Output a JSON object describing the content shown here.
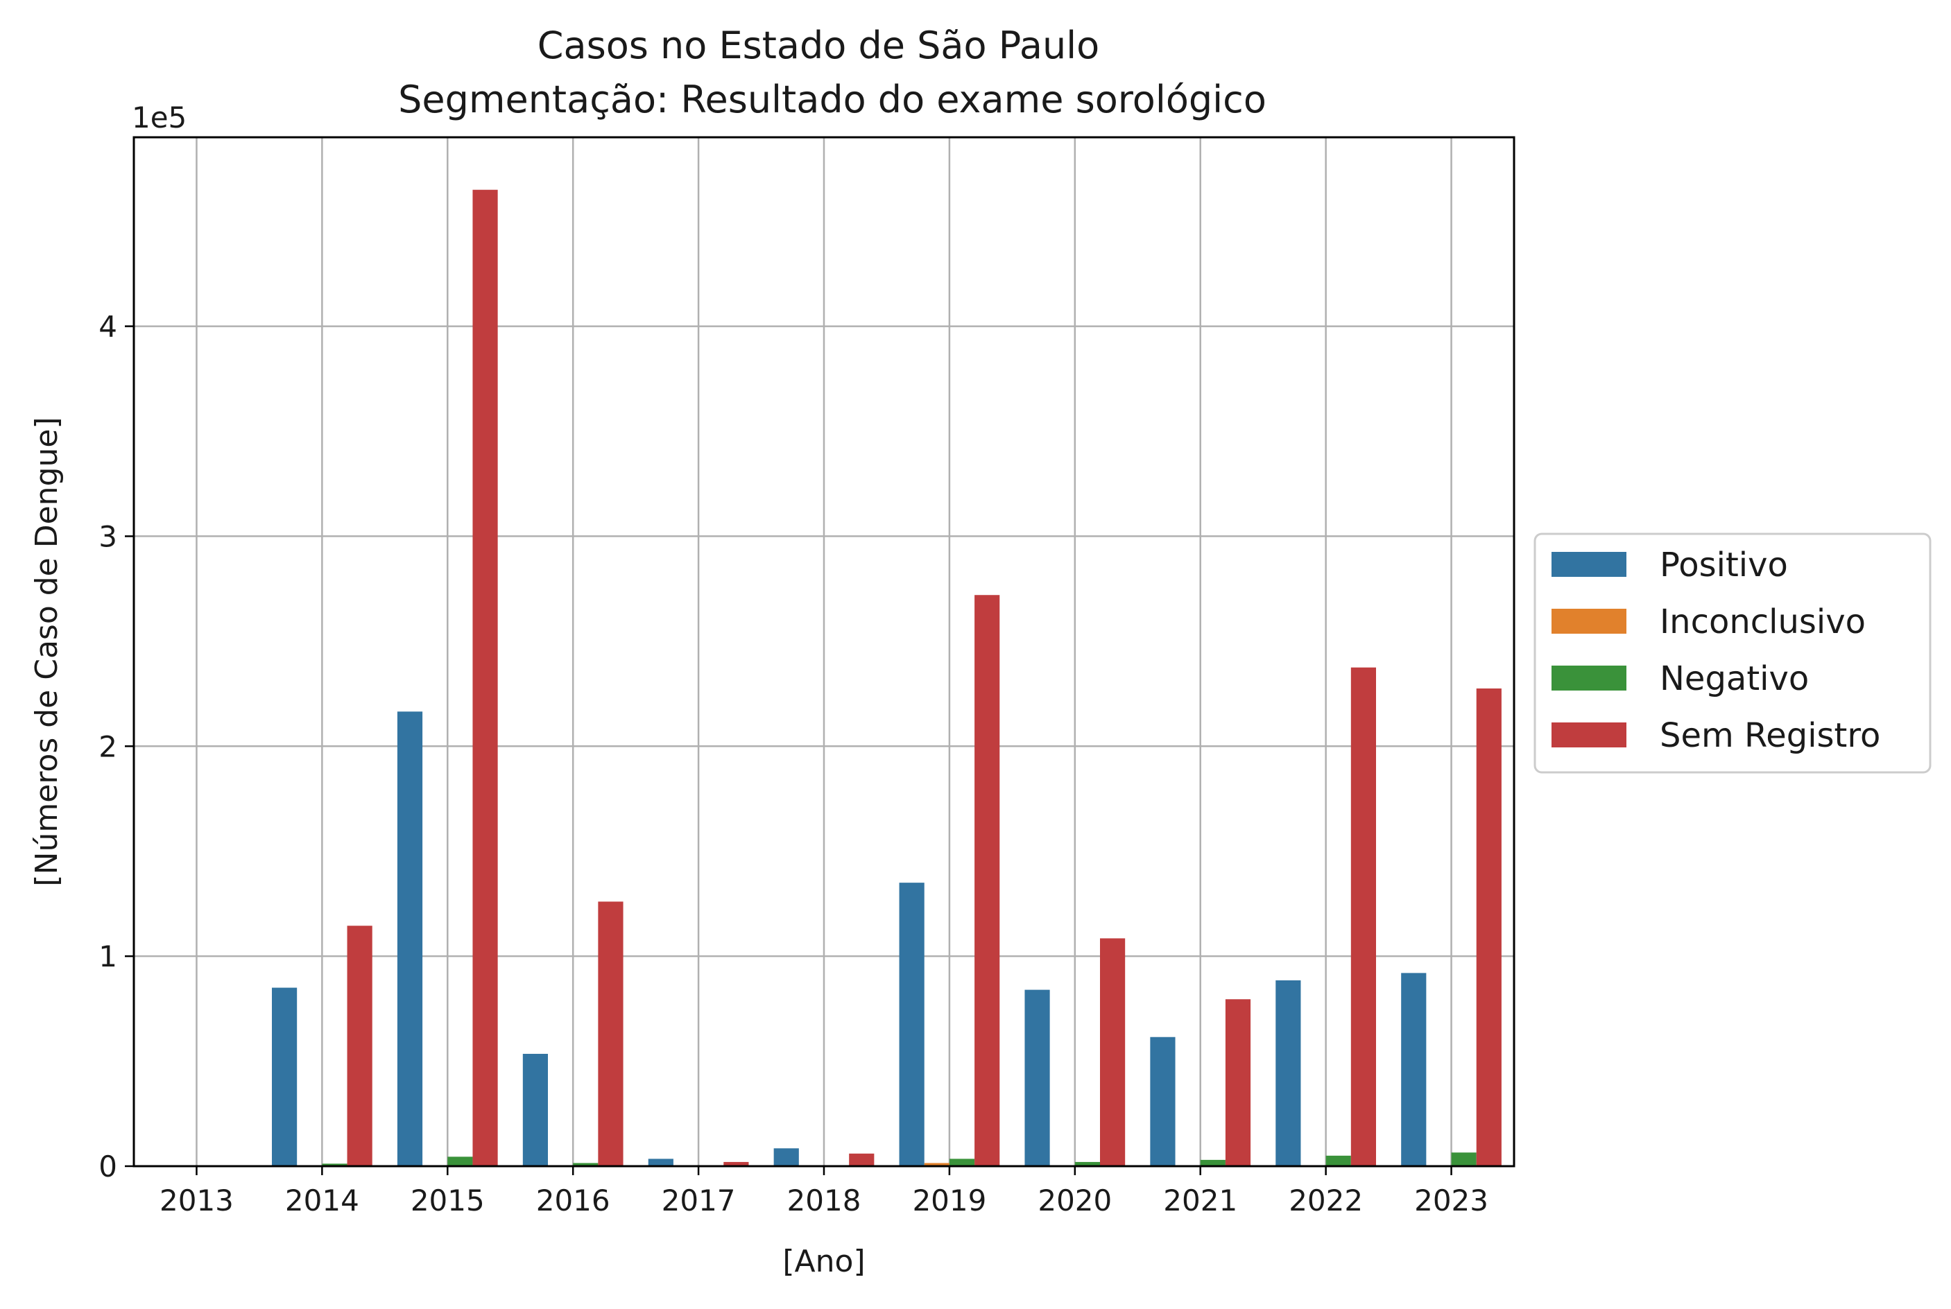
{
  "chart_data": {
    "type": "bar",
    "title": "Casos no Estado de São Paulo",
    "subtitle": "Segmentação: Resultado do exame sorológico",
    "xlabel": "[Ano]",
    "ylabel": "[Números de Caso de Dengue]",
    "y_multiplier_label": "1e5",
    "y_multiplier": 100000,
    "ylim": [
      0,
      490000
    ],
    "yticks": [
      0,
      1,
      2,
      3,
      4
    ],
    "grid": true,
    "legend_position": "right",
    "categories": [
      "2013",
      "2014",
      "2015",
      "2016",
      "2017",
      "2018",
      "2019",
      "2020",
      "2021",
      "2022",
      "2023"
    ],
    "series": [
      {
        "name": "Positivo",
        "color": "#3274a1",
        "values": [
          0,
          85000,
          216500,
          53500,
          3500,
          8500,
          135000,
          84000,
          61500,
          88500,
          92000
        ]
      },
      {
        "name": "Inconclusivo",
        "color": "#e1812c",
        "values": [
          0,
          0,
          0,
          0,
          0,
          0,
          1500,
          0,
          0,
          0,
          0
        ]
      },
      {
        "name": "Negativo",
        "color": "#3a923a",
        "values": [
          0,
          1200,
          4500,
          1500,
          300,
          400,
          3500,
          2000,
          3000,
          5000,
          6500
        ]
      },
      {
        "name": "Sem Registro",
        "color": "#c03d3e",
        "values": [
          0,
          114500,
          465000,
          126000,
          2000,
          6000,
          272000,
          108500,
          79500,
          237500,
          227500
        ]
      }
    ]
  }
}
